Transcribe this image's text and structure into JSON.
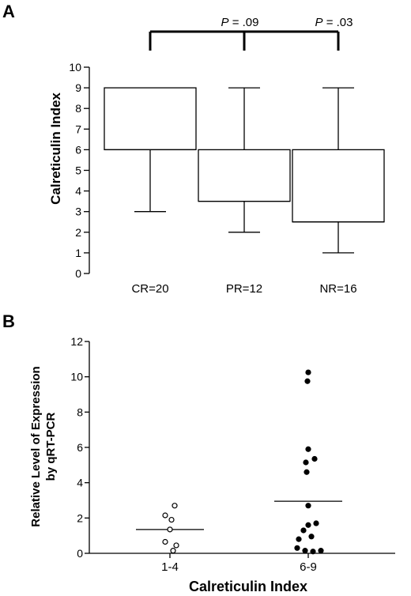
{
  "chart_data": [
    {
      "panel": "A",
      "type": "box",
      "ylabel": "Calreticulin Index",
      "ylim": [
        0,
        10
      ],
      "yticks": [
        0,
        1,
        2,
        3,
        4,
        5,
        6,
        7,
        8,
        9,
        10
      ],
      "categories": [
        "CR=20",
        "PR=12",
        "NR=16"
      ],
      "boxes": [
        {
          "min": 3,
          "q1": 6,
          "median": 6,
          "q3": 9,
          "max": 9
        },
        {
          "min": 2,
          "q1": 3.5,
          "median": 3.5,
          "q3": 6,
          "max": 9
        },
        {
          "min": 1,
          "q1": 2.5,
          "median": 2.5,
          "q3": 6,
          "max": 9
        }
      ],
      "annotations": [
        {
          "p_label": "P",
          "value_text": " = .09",
          "from": "CR=20",
          "to": "PR=12"
        },
        {
          "p_label": "P",
          "value_text": " = .03",
          "from": "CR=20",
          "to": "NR=16"
        }
      ]
    },
    {
      "panel": "B",
      "type": "scatter",
      "ylabel_lines": [
        "Relative Level of Expression",
        "by qRT-PCR"
      ],
      "xlabel": "Calreticulin Index",
      "ylim": [
        0,
        12
      ],
      "yticks": [
        0,
        2,
        4,
        6,
        8,
        10,
        12
      ],
      "yticks_text": [
        "0",
        "2",
        "4",
        "6",
        "8",
        "10",
        "12"
      ],
      "categories": [
        "1-4",
        "6-9"
      ],
      "series": [
        {
          "category": "1-4",
          "marker": "open-circle",
          "mean": 1.35,
          "points": [
            {
              "dx": 0.06,
              "y": 2.7
            },
            {
              "dx": -0.06,
              "y": 2.15
            },
            {
              "dx": 0.02,
              "y": 1.9
            },
            {
              "dx": 0.0,
              "y": 1.35
            },
            {
              "dx": 0.08,
              "y": 0.45
            },
            {
              "dx": -0.06,
              "y": 0.65
            },
            {
              "dx": 0.04,
              "y": 0.15
            }
          ]
        },
        {
          "category": "6-9",
          "marker": "filled-circle",
          "mean": 2.95,
          "points": [
            {
              "dx": 0.0,
              "y": 10.25
            },
            {
              "dx": -0.01,
              "y": 9.75
            },
            {
              "dx": 0.0,
              "y": 5.9
            },
            {
              "dx": 0.08,
              "y": 5.35
            },
            {
              "dx": -0.03,
              "y": 5.15
            },
            {
              "dx": -0.02,
              "y": 4.6
            },
            {
              "dx": 0.0,
              "y": 2.7
            },
            {
              "dx": 0.0,
              "y": 1.6
            },
            {
              "dx": 0.1,
              "y": 1.7
            },
            {
              "dx": -0.06,
              "y": 1.3
            },
            {
              "dx": 0.04,
              "y": 0.95
            },
            {
              "dx": -0.12,
              "y": 0.8
            },
            {
              "dx": -0.14,
              "y": 0.3
            },
            {
              "dx": -0.04,
              "y": 0.15
            },
            {
              "dx": 0.06,
              "y": 0.1
            },
            {
              "dx": 0.16,
              "y": 0.15
            }
          ]
        }
      ]
    }
  ],
  "labels": {
    "panel_a": "A",
    "panel_b": "B"
  },
  "colors": {
    "ink": "#000000",
    "background": "#ffffff"
  }
}
